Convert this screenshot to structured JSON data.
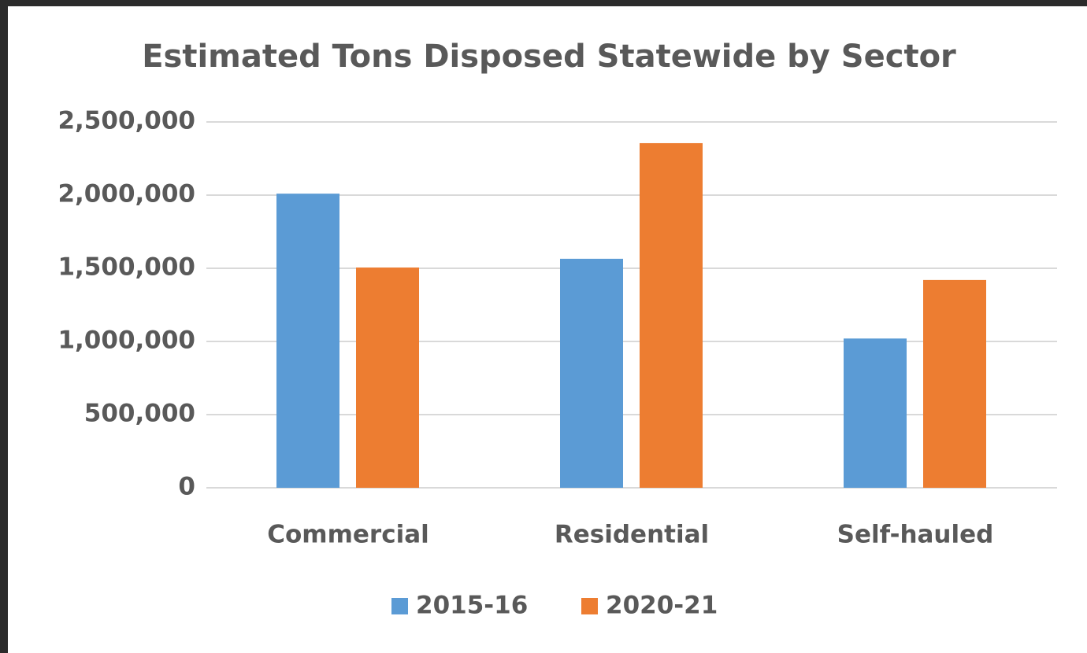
{
  "chart_data": {
    "type": "bar",
    "title": "Estimated Tons Disposed Statewide by Sector",
    "categories": [
      "Commercial",
      "Residential",
      "Self-hauled"
    ],
    "series": [
      {
        "name": "2015-16",
        "color": "#5b9bd5",
        "values": [
          2010000,
          1565000,
          1020000
        ]
      },
      {
        "name": "2020-21",
        "color": "#ed7d31",
        "values": [
          1505000,
          2355000,
          1420000
        ]
      }
    ],
    "ylim": [
      0,
      2500000
    ],
    "yticks": [
      0,
      {
        "value": 500000,
        "label": "500,000"
      },
      {
        "value": 1000000,
        "label": "1,000,000"
      },
      {
        "value": 1500000,
        "label": "1,500,000"
      },
      {
        "value": 2000000,
        "label": "2,000,000"
      },
      {
        "value": 2500000,
        "label": "2,500,000"
      }
    ],
    "grid": true,
    "legend": "bottom"
  }
}
